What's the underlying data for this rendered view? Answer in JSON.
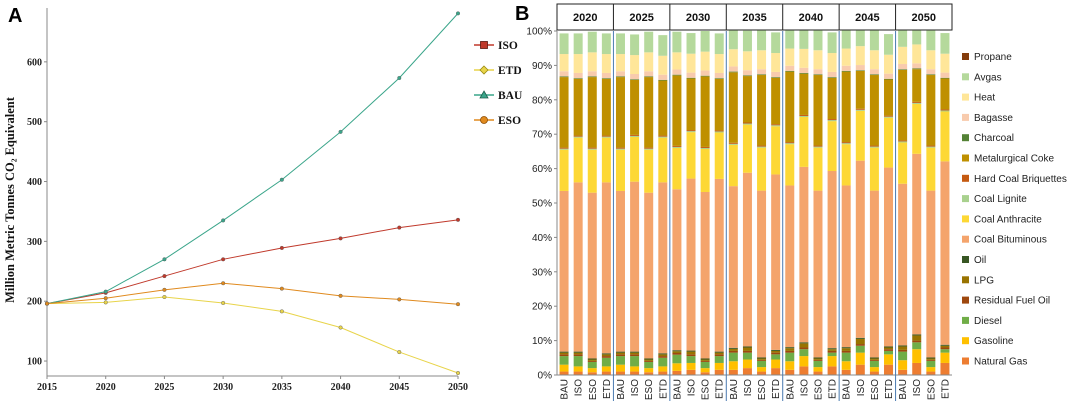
{
  "figure": {
    "panel_a_letter": "A",
    "panel_b_letter": "B"
  },
  "chart_data": [
    {
      "panel": "A",
      "type": "line",
      "title": "",
      "xlabel": "",
      "ylabel": "Million Metric Tonnes CO₂ Equivalent",
      "x": [
        2015,
        2020,
        2025,
        2030,
        2035,
        2040,
        2045,
        2050
      ],
      "xlim": [
        2015,
        2050
      ],
      "ylim": [
        75,
        690
      ],
      "yticks": [
        100,
        200,
        300,
        400,
        500,
        600
      ],
      "legend_position": "right",
      "series": [
        {
          "name": "ISO",
          "color": "#c0392b",
          "marker": "square",
          "values": [
            196,
            214,
            242,
            270,
            289,
            305,
            323,
            336
          ]
        },
        {
          "name": "ETD",
          "color": "#e8d44a",
          "marker": "diamond",
          "values": [
            196,
            198,
            207,
            197,
            183,
            156,
            115,
            80
          ]
        },
        {
          "name": "BAU",
          "color": "#3aa58a",
          "marker": "triangle",
          "values": [
            196,
            216,
            270,
            335,
            403,
            483,
            573,
            681
          ]
        },
        {
          "name": "ESO",
          "color": "#e08a1e",
          "marker": "circle",
          "values": [
            196,
            205,
            219,
            230,
            221,
            209,
            203,
            195
          ]
        }
      ]
    },
    {
      "panel": "B",
      "type": "bar",
      "stacked": "percent",
      "title": "",
      "xlabel": "",
      "ylabel": "",
      "years": [
        "2020",
        "2025",
        "2030",
        "2035",
        "2040",
        "2045",
        "2050"
      ],
      "scenarios": [
        "BAU",
        "ISO",
        "ESO",
        "ETD"
      ],
      "yticks": [
        "0%",
        "10%",
        "20%",
        "30%",
        "40%",
        "50%",
        "60%",
        "70%",
        "80%",
        "90%",
        "100%"
      ],
      "ylim": [
        0,
        100
      ],
      "legend_position": "right",
      "legend_order": [
        "Propane",
        "Avgas",
        "Heat",
        "Bagasse",
        "Charcoal",
        "Metalurgical Coke",
        "Hard Coal Briquettes",
        "Coal Lignite",
        "Coal Anthracite",
        "Coal Bituminous",
        "Oil",
        "LPG",
        "Residual Fuel Oil",
        "Diesel",
        "Gasoline",
        "Natural Gas"
      ],
      "series": [
        {
          "name": "Natural Gas",
          "color": "#ed7d31",
          "values": [
            [
              1,
              1,
              0.8,
              1
            ],
            [
              1,
              1,
              0.8,
              1
            ],
            [
              1.2,
              1.5,
              0.8,
              1.5
            ],
            [
              1.5,
              2,
              1,
              2
            ],
            [
              1.5,
              2.5,
              1,
              2.5
            ],
            [
              1.5,
              3,
              1,
              3
            ],
            [
              1.5,
              3.5,
              1,
              3.5
            ]
          ]
        },
        {
          "name": "Gasoline",
          "color": "#ffc000",
          "values": [
            [
              2,
              1.5,
              1.2,
              1.5
            ],
            [
              2,
              1.5,
              1.2,
              1.5
            ],
            [
              2.2,
              2,
              1.2,
              2
            ],
            [
              2.5,
              2.5,
              1.3,
              2.5
            ],
            [
              2.5,
              3,
              1.3,
              3
            ],
            [
              2.5,
              3.5,
              1.3,
              3
            ],
            [
              2.8,
              4,
              1.3,
              3
            ]
          ]
        },
        {
          "name": "Diesel",
          "color": "#70ad47",
          "values": [
            [
              2.5,
              3,
              1.8,
              2.5
            ],
            [
              2.5,
              3,
              1.8,
              2.5
            ],
            [
              2.5,
              2,
              1.8,
              2
            ],
            [
              2.5,
              2,
              1.8,
              1.5
            ],
            [
              2.5,
              2,
              1.8,
              1
            ],
            [
              2.5,
              2,
              1.8,
              1
            ],
            [
              2.5,
              2,
              1.8,
              1
            ]
          ]
        },
        {
          "name": "Residual Fuel Oil",
          "color": "#9e480e",
          "values": [
            [
              0.5,
              0.5,
              0.3,
              0.5
            ],
            [
              0.5,
              0.5,
              0.3,
              0.5
            ],
            [
              0.5,
              0.5,
              0.3,
              0.5
            ],
            [
              0.5,
              0.5,
              0.3,
              0.5
            ],
            [
              0.5,
              0.5,
              0.3,
              0.5
            ],
            [
              0.5,
              0.5,
              0.3,
              0.5
            ],
            [
              0.5,
              0.5,
              0.3,
              0.5
            ]
          ]
        },
        {
          "name": "LPG",
          "color": "#997300",
          "values": [
            [
              0.5,
              0.5,
              0.4,
              0.5
            ],
            [
              0.5,
              0.5,
              0.4,
              0.5
            ],
            [
              0.5,
              0.8,
              0.4,
              0.5
            ],
            [
              0.6,
              1,
              0.4,
              0.5
            ],
            [
              0.8,
              1.2,
              0.4,
              0.5
            ],
            [
              0.8,
              1.5,
              0.4,
              0.5
            ],
            [
              1,
              1.5,
              0.4,
              0.5
            ]
          ]
        },
        {
          "name": "Oil",
          "color": "#375623",
          "values": [
            [
              0.3,
              0.3,
              0.3,
              0.3
            ],
            [
              0.3,
              0.3,
              0.3,
              0.3
            ],
            [
              0.3,
              0.3,
              0.3,
              0.3
            ],
            [
              0.3,
              0.3,
              0.3,
              0.3
            ],
            [
              0.3,
              0.3,
              0.3,
              0.3
            ],
            [
              0.3,
              0.3,
              0.3,
              0.3
            ],
            [
              0.3,
              0.3,
              0.3,
              0.3
            ]
          ]
        },
        {
          "name": "Coal Bituminous",
          "color": "#f4a46c",
          "values": [
            [
              46.7,
              49.2,
              48.2,
              49.7
            ],
            [
              46.7,
              49.4,
              48.2,
              49.7
            ],
            [
              46.8,
              50,
              48.4,
              50.2
            ],
            [
              47,
              50.5,
              48.5,
              51
            ],
            [
              47,
              51,
              48.5,
              51.5
            ],
            [
              47,
              51.5,
              48.5,
              52
            ],
            [
              47,
              52.5,
              48.5,
              53.3
            ]
          ]
        },
        {
          "name": "Coal Anthracite",
          "color": "#fdd835",
          "values": [
            [
              12,
              13,
              12.5,
              13
            ],
            [
              12,
              13,
              12.5,
              13
            ],
            [
              12,
              13.5,
              12.5,
              13.5
            ],
            [
              12,
              14,
              12.5,
              14
            ],
            [
              12,
              14.5,
              12.5,
              14.5
            ],
            [
              12,
              14.5,
              12.5,
              14.5
            ],
            [
              12,
              14.5,
              12.5,
              14.5
            ]
          ]
        },
        {
          "name": "Coal Lignite",
          "color": "#a9d18e",
          "values": [
            [
              0.3,
              0.3,
              0.3,
              0.3
            ],
            [
              0.3,
              0.3,
              0.3,
              0.3
            ],
            [
              0.3,
              0.3,
              0.3,
              0.3
            ],
            [
              0.3,
              0.3,
              0.3,
              0.3
            ],
            [
              0.3,
              0.3,
              0.3,
              0.3
            ],
            [
              0.3,
              0.3,
              0.3,
              0.3
            ],
            [
              0.3,
              0.3,
              0.3,
              0.3
            ]
          ]
        },
        {
          "name": "Hard Coal Briquettes",
          "color": "#c55a11",
          "values": [
            [
              0.3,
              0.3,
              0.3,
              0.3
            ],
            [
              0.3,
              0.3,
              0.3,
              0.3
            ],
            [
              0.3,
              0.3,
              0.3,
              0.3
            ],
            [
              0.3,
              0.3,
              0.3,
              0.3
            ],
            [
              0.3,
              0.3,
              0.3,
              0.3
            ],
            [
              0.3,
              0.3,
              0.3,
              0.3
            ],
            [
              0.3,
              0.3,
              0.3,
              0.3
            ]
          ]
        },
        {
          "name": "Metalurgical Coke",
          "color": "#bf9000",
          "values": [
            [
              20.5,
              16.5,
              20.5,
              16.5
            ],
            [
              20.5,
              16,
              20.5,
              16
            ],
            [
              20.5,
              15,
              20.5,
              15
            ],
            [
              20.5,
              13.5,
              20.5,
              13.5
            ],
            [
              20.5,
              12,
              20.5,
              12
            ],
            [
              20.5,
              11,
              20.5,
              10.5
            ],
            [
              20.5,
              9.5,
              20.5,
              9
            ]
          ]
        },
        {
          "name": "Charcoal",
          "color": "#548235",
          "values": [
            [
              0.2,
              0.2,
              0.2,
              0.2
            ],
            [
              0.2,
              0.2,
              0.2,
              0.2
            ],
            [
              0.2,
              0.2,
              0.2,
              0.2
            ],
            [
              0.2,
              0.2,
              0.2,
              0.2
            ],
            [
              0.2,
              0.2,
              0.2,
              0.2
            ],
            [
              0.2,
              0.2,
              0.2,
              0.2
            ],
            [
              0.2,
              0.2,
              0.2,
              0.2
            ]
          ]
        },
        {
          "name": "Bagasse",
          "color": "#f8cbad",
          "values": [
            [
              1.5,
              1.5,
              1.5,
              1.5
            ],
            [
              1.5,
              1.5,
              1.5,
              1.5
            ],
            [
              1.5,
              1.5,
              1.5,
              1.5
            ],
            [
              1.5,
              1.5,
              1.5,
              1.5
            ],
            [
              1.5,
              1.5,
              1.5,
              1.5
            ],
            [
              1.5,
              1.5,
              1.5,
              1.5
            ],
            [
              1.5,
              1.5,
              1.5,
              1.5
            ]
          ]
        },
        {
          "name": "Heat",
          "color": "#ffe699",
          "values": [
            [
              5,
              5.5,
              5.5,
              5.5
            ],
            [
              5,
              5.5,
              5.5,
              5.5
            ],
            [
              5,
              5.5,
              5.5,
              5.5
            ],
            [
              5,
              5.5,
              5.5,
              5.5
            ],
            [
              5,
              5.5,
              5.5,
              5.5
            ],
            [
              5,
              5.5,
              5.5,
              5.5
            ],
            [
              5,
              5.5,
              5.5,
              5.5
            ]
          ]
        },
        {
          "name": "Avgas",
          "color": "#b5d99c",
          "values": [
            [
              6,
              6,
              6,
              6
            ],
            [
              6,
              6,
              6,
              6
            ],
            [
              6,
              6,
              6,
              6
            ],
            [
              6,
              6,
              6,
              6
            ],
            [
              6,
              6,
              6,
              6
            ],
            [
              6,
              6,
              6,
              6
            ],
            [
              6,
              6,
              6,
              6
            ]
          ]
        },
        {
          "name": "Propane",
          "color": "#843c0c",
          "values": [
            [
              0,
              0,
              0,
              0
            ],
            [
              0,
              0,
              0,
              0
            ],
            [
              0,
              0,
              0,
              0
            ],
            [
              0,
              0,
              0,
              0
            ],
            [
              0,
              0,
              0,
              0
            ],
            [
              0,
              0,
              0,
              0
            ],
            [
              0,
              0,
              0,
              0
            ]
          ]
        }
      ]
    }
  ]
}
